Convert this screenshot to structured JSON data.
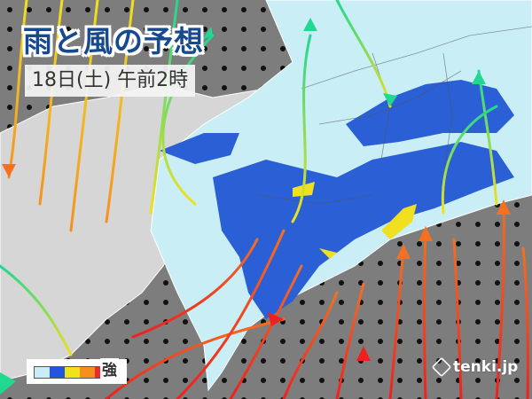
{
  "title": "雨と風の予想",
  "datetime": "18日(土) 午前2時",
  "legend": {
    "label": "強",
    "colors": [
      "#c8ecf8",
      "#2255dd",
      "#f2e21a",
      "#f5901e",
      "#ee2a2a"
    ]
  },
  "logo": "tenki.jp",
  "colors": {
    "sea": "#7d7d7d",
    "land": "#d6d6d6",
    "light_rain": "#c9eef6",
    "moderate_rain": "#2a5fd6",
    "heavy_rain": "#f0e020"
  }
}
